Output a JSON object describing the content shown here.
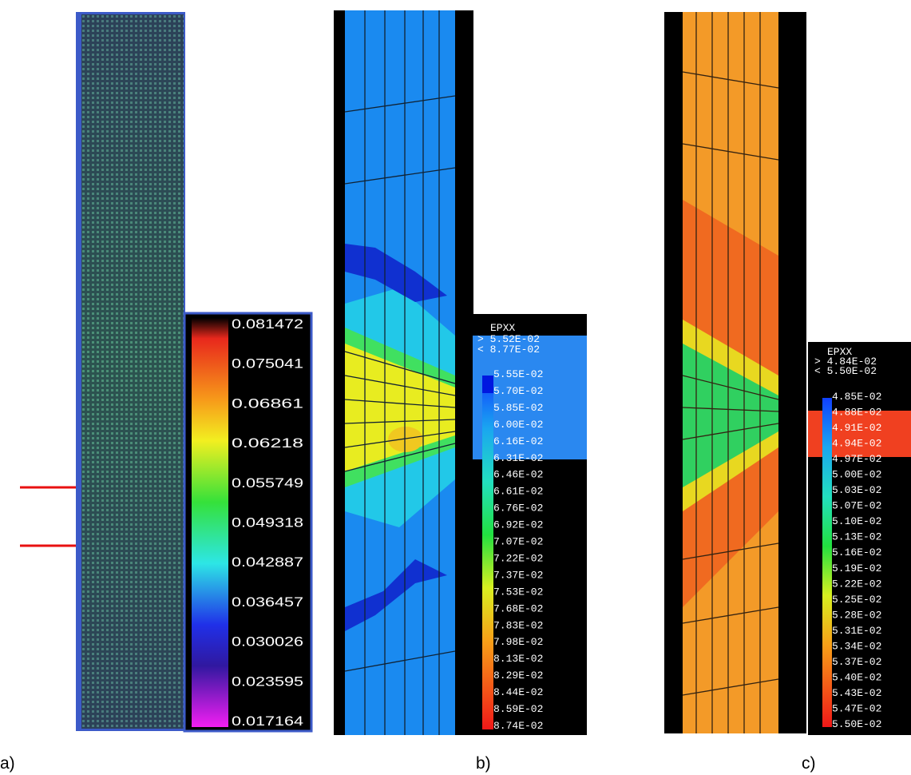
{
  "panels": [
    {
      "label": "a)",
      "legend": {
        "ticks": [
          "0.081472",
          "0.075041",
          "0.06861",
          "0.06218",
          "0.055749",
          "0.049318",
          "0.042887",
          "0.036457",
          "0.030026",
          "0.023595",
          "0.017164"
        ]
      }
    },
    {
      "label": "b)",
      "legend": {
        "title": "EPXX",
        "range": [
          "> 5.52E-02",
          "< 8.77E-02"
        ],
        "levels": [
          "5.55E-02",
          "5.70E-02",
          "5.85E-02",
          "6.00E-02",
          "6.16E-02",
          "6.31E-02",
          "6.46E-02",
          "6.61E-02",
          "6.76E-02",
          "6.92E-02",
          "7.07E-02",
          "7.22E-02",
          "7.37E-02",
          "7.53E-02",
          "7.68E-02",
          "7.83E-02",
          "7.98E-02",
          "8.13E-02",
          "8.29E-02",
          "8.44E-02",
          "8.59E-02",
          "8.74E-02"
        ]
      }
    },
    {
      "label": "c)",
      "legend": {
        "title": "EPXX",
        "range": [
          "> 4.84E-02",
          "< 5.50E-02"
        ],
        "levels": [
          "4.85E-02",
          "4.88E-02",
          "4.91E-02",
          "4.94E-02",
          "4.97E-02",
          "5.00E-02",
          "5.03E-02",
          "5.07E-02",
          "5.10E-02",
          "5.13E-02",
          "5.16E-02",
          "5.19E-02",
          "5.22E-02",
          "5.25E-02",
          "5.28E-02",
          "5.31E-02",
          "5.34E-02",
          "5.37E-02",
          "5.40E-02",
          "5.43E-02",
          "5.47E-02",
          "5.50E-02"
        ]
      }
    }
  ]
}
